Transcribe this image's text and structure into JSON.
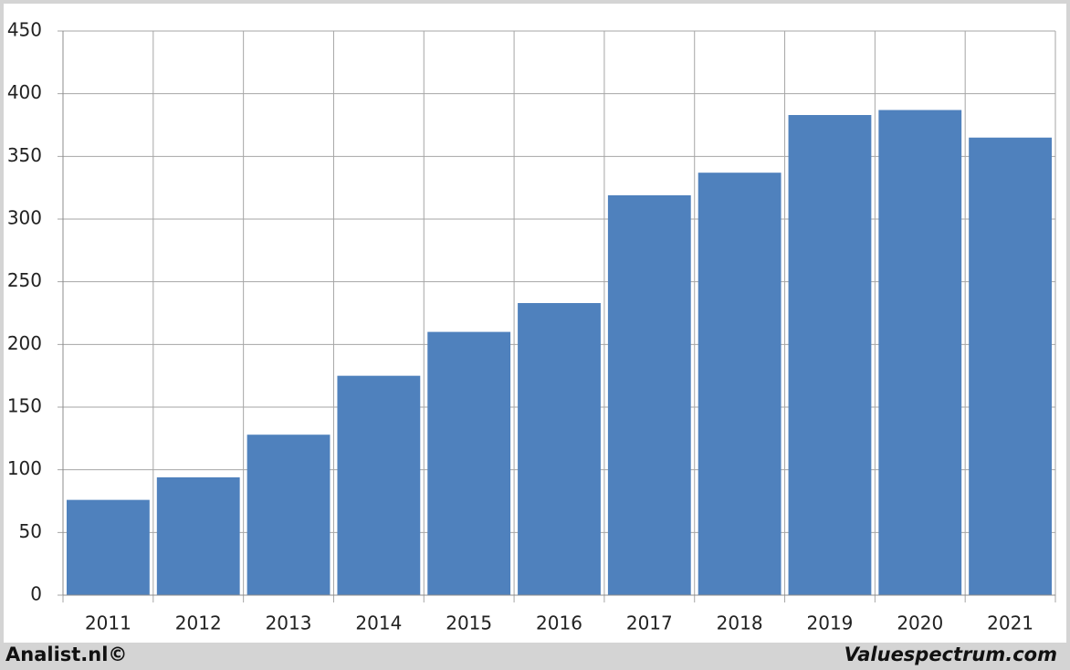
{
  "chart_data": {
    "type": "bar",
    "categories": [
      "2011",
      "2012",
      "2013",
      "2014",
      "2015",
      "2016",
      "2017",
      "2018",
      "2019",
      "2020",
      "2021"
    ],
    "values": [
      76,
      94,
      128,
      175,
      210,
      233,
      319,
      337,
      383,
      387,
      365
    ],
    "color": "#4f81bd",
    "ylim": [
      0,
      450
    ],
    "yticks": [
      0,
      50,
      100,
      150,
      200,
      250,
      300,
      350,
      400,
      450
    ],
    "grid": true,
    "source": "Analist.nl©",
    "credit": "Valuespectrum.com"
  }
}
